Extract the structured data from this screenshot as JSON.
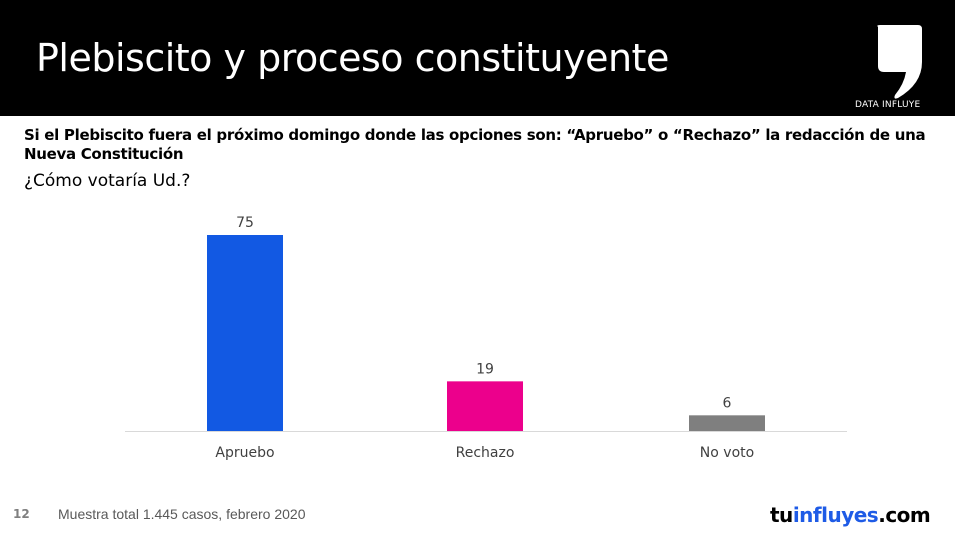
{
  "header": {
    "title": "Plebiscito y proceso constituyente",
    "logo_text": "DATA INFLUYE"
  },
  "question": {
    "main": "Si el Plebiscito fuera el próximo domingo donde las opciones son: “Apruebo” o “Rechazo” la redacción de una Nueva Constitución",
    "sub": "¿Cómo votaría Ud.?"
  },
  "footer": {
    "page_number": "12",
    "note": "Muestra total 1.445 casos, febrero 2020",
    "brand_part1": "tu",
    "brand_part2": "influyes",
    "brand_part3": ".com"
  },
  "colors": {
    "header_bg": "#000000",
    "brand_blue": "#1E5BE6"
  },
  "chart_data": {
    "type": "bar",
    "title": "¿Cómo votaría Ud.?",
    "xlabel": "",
    "ylabel": "",
    "categories": [
      "Apruebo",
      "Rechazo",
      "No voto"
    ],
    "values": [
      75,
      19,
      6
    ],
    "colors": [
      "#1259E3",
      "#EC008C",
      "#7F7F7F"
    ],
    "data_labels": [
      "75",
      "19",
      "6"
    ],
    "ylim": [
      0,
      75
    ],
    "grid": false,
    "legend": "none"
  }
}
